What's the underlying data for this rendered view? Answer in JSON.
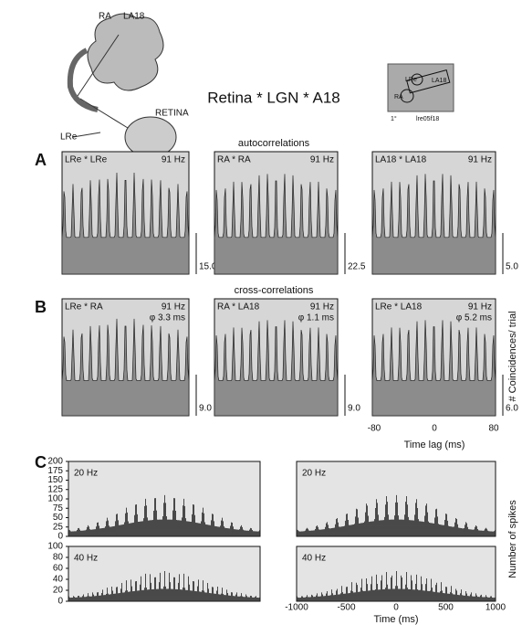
{
  "header": {
    "title": "Retina * LGN * A18",
    "anatomy_labels": [
      "RA",
      "LA18",
      "RETINA",
      "LRe"
    ],
    "inset": {
      "labels": [
        "LRe",
        "LA18",
        "RA"
      ],
      "scale": "1°",
      "id": "lre05f18"
    }
  },
  "panels": [
    {
      "letter": "A",
      "caption": "autocorrelations",
      "plots": [
        {
          "pair": "LRe * LRe",
          "freq": "91 Hz",
          "scale": "15.0"
        },
        {
          "pair": "RA * RA",
          "freq": "91 Hz",
          "scale": "22.5"
        },
        {
          "pair": "LA18 * LA18",
          "freq": "91 Hz",
          "scale": "5.0"
        }
      ]
    },
    {
      "letter": "B",
      "caption": "cross-correlations",
      "plots": [
        {
          "pair": "LRe * RA",
          "freq": "91 Hz",
          "phase": "φ 3.3 ms",
          "scale": "9.0"
        },
        {
          "pair": "RA * LA18",
          "freq": "91 Hz",
          "phase": "φ 1.1 ms",
          "scale": "9.0"
        },
        {
          "pair": "LRe * LA18",
          "freq": "91 Hz",
          "phase": "φ 5.2 ms",
          "scale": "6.0"
        }
      ],
      "y_label": "# Coincidences/ trial",
      "x_ticks": [
        "-80",
        "0",
        "80"
      ],
      "x_label": "Time lag (ms)"
    },
    {
      "letter": "C",
      "plots": [
        {
          "freq": "20 Hz",
          "y_ticks": [
            "0",
            "25",
            "50",
            "75",
            "100",
            "125",
            "150",
            "175",
            "200"
          ]
        },
        {
          "freq": "20 Hz"
        },
        {
          "freq": "40 Hz",
          "y_ticks": [
            "0",
            "20",
            "40",
            "60",
            "80",
            "100"
          ]
        },
        {
          "freq": "40 Hz"
        }
      ],
      "x_ticks": [
        "-1000",
        "-500",
        "0",
        "500",
        "1000"
      ],
      "x_label": "Time (ms)",
      "y_label": "Number of spikes"
    }
  ]
}
